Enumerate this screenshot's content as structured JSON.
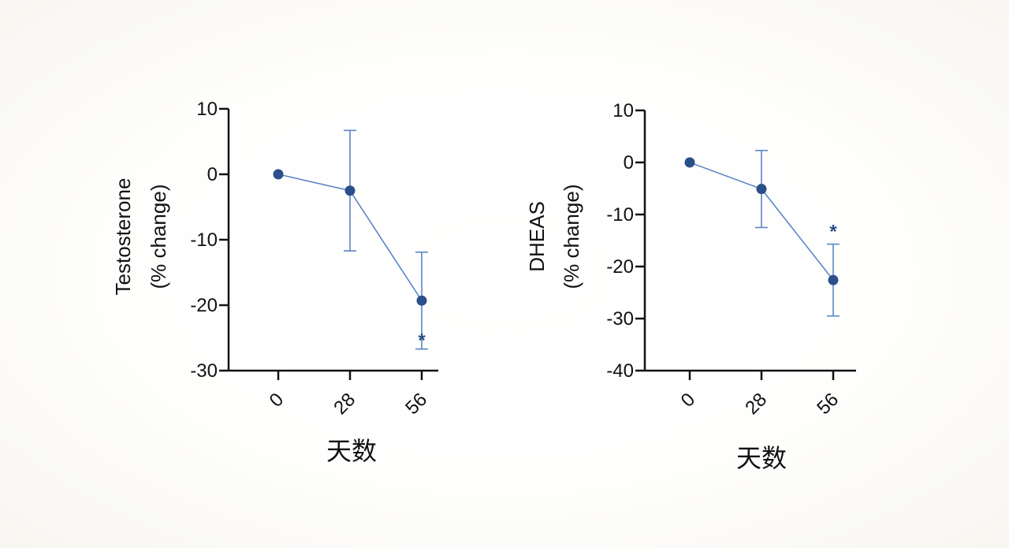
{
  "colors": {
    "series": "#2b4f8a",
    "line": "#5b86c4",
    "axis": "#111111"
  },
  "chart_data": [
    {
      "type": "line",
      "x": [
        "0",
        "28",
        "56"
      ],
      "series": [
        {
          "values": [
            0,
            -2.5,
            -19.3
          ],
          "error": [
            0,
            9.2,
            7.4
          ]
        }
      ],
      "xlabel": "天数",
      "ylabel": [
        "Testosterone",
        "(% change)"
      ],
      "ylim": [
        -30,
        10
      ],
      "yticks": [
        10,
        0,
        -10,
        -20,
        -30
      ],
      "annotations": [
        {
          "x": "56",
          "text": "*",
          "position": "below"
        }
      ],
      "grid": false
    },
    {
      "type": "line",
      "x": [
        "0",
        "28",
        "56"
      ],
      "series": [
        {
          "values": [
            0,
            -5.1,
            -22.6
          ],
          "error": [
            0,
            7.4,
            6.9
          ]
        }
      ],
      "xlabel": "天数",
      "ylabel": [
        "DHEAS",
        "(% change)"
      ],
      "ylim": [
        -40,
        10
      ],
      "yticks": [
        10,
        0,
        -10,
        -20,
        -30,
        -40
      ],
      "annotations": [
        {
          "x": "56",
          "text": "*",
          "position": "above"
        }
      ],
      "grid": false
    }
  ]
}
